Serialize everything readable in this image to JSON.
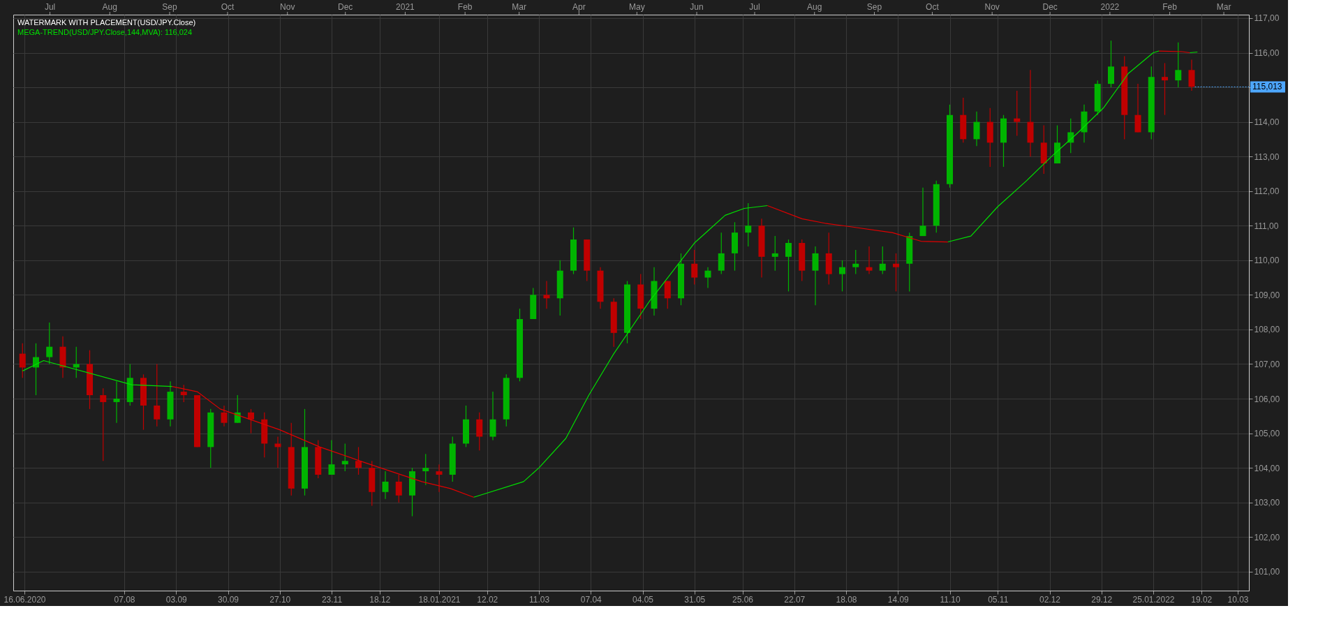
{
  "chart_data": {
    "type": "candlestick",
    "annotations": [
      "WATERMARK WITH PLACEMENT(USD/JPY.Close)",
      {
        "text": "115,013",
        "x": "2022-02-14",
        "y": 115.013
      }
    ],
    "x": [
      "2020-06-15",
      "2020-06-22",
      "2020-06-29",
      "2020-07-06",
      "2020-07-13",
      "2020-07-20",
      "2020-07-27",
      "2020-08-03",
      "2020-08-10",
      "2020-08-17",
      "2020-08-24",
      "2020-08-31",
      "2020-09-07",
      "2020-09-14",
      "2020-09-21",
      "2020-09-28",
      "2020-10-05",
      "2020-10-12",
      "2020-10-19",
      "2020-10-26",
      "2020-11-02",
      "2020-11-09",
      "2020-11-16",
      "2020-11-23",
      "2020-11-30",
      "2020-12-07",
      "2020-12-14",
      "2020-12-21",
      "2020-12-28",
      "2021-01-04",
      "2021-01-11",
      "2021-01-18",
      "2021-01-25",
      "2021-02-01",
      "2021-02-08",
      "2021-02-15",
      "2021-02-22",
      "2021-03-01",
      "2021-03-08",
      "2021-03-15",
      "2021-03-22",
      "2021-03-29",
      "2021-04-05",
      "2021-04-12",
      "2021-04-19",
      "2021-04-26",
      "2021-05-03",
      "2021-05-10",
      "2021-05-17",
      "2021-05-24",
      "2021-05-31",
      "2021-06-07",
      "2021-06-14",
      "2021-06-21",
      "2021-06-28",
      "2021-07-05",
      "2021-07-12",
      "2021-07-19",
      "2021-07-26",
      "2021-08-02",
      "2021-08-09",
      "2021-08-16",
      "2021-08-23",
      "2021-08-30",
      "2021-09-06",
      "2021-09-13",
      "2021-09-20",
      "2021-09-27",
      "2021-10-04",
      "2021-10-11",
      "2021-10-18",
      "2021-10-25",
      "2021-11-01",
      "2021-11-08",
      "2021-11-15",
      "2021-11-22",
      "2021-11-29",
      "2021-12-06",
      "2021-12-13",
      "2021-12-20",
      "2021-12-27",
      "2022-01-03",
      "2022-01-10",
      "2022-01-17",
      "2022-01-24",
      "2022-01-31",
      "2022-02-07",
      "2022-02-14"
    ],
    "ohlc": [
      [
        107.3,
        107.6,
        106.6,
        106.9
      ],
      [
        106.9,
        107.6,
        106.1,
        107.2
      ],
      [
        107.2,
        108.2,
        107.0,
        107.5
      ],
      [
        107.5,
        107.8,
        106.6,
        106.9
      ],
      [
        106.9,
        107.5,
        106.6,
        107.0
      ],
      [
        107.0,
        107.4,
        105.7,
        106.1
      ],
      [
        106.1,
        106.3,
        104.2,
        105.9
      ],
      [
        105.9,
        106.5,
        105.3,
        106.0
      ],
      [
        105.9,
        107.0,
        105.8,
        106.6
      ],
      [
        106.6,
        106.7,
        105.1,
        105.8
      ],
      [
        105.8,
        107.0,
        105.2,
        105.4
      ],
      [
        105.4,
        106.5,
        105.2,
        106.2
      ],
      [
        106.2,
        106.4,
        105.9,
        106.1
      ],
      [
        106.1,
        106.1,
        104.6,
        104.6
      ],
      [
        104.6,
        105.7,
        104.0,
        105.6
      ],
      [
        105.6,
        105.8,
        105.2,
        105.3
      ],
      [
        105.3,
        106.1,
        105.3,
        105.6
      ],
      [
        105.6,
        105.7,
        105.0,
        105.4
      ],
      [
        105.4,
        105.6,
        104.3,
        104.7
      ],
      [
        104.7,
        104.9,
        104.0,
        104.6
      ],
      [
        104.6,
        105.3,
        103.2,
        103.4
      ],
      [
        103.4,
        105.7,
        103.2,
        104.6
      ],
      [
        104.6,
        104.8,
        103.7,
        103.8
      ],
      [
        103.8,
        104.8,
        103.8,
        104.1
      ],
      [
        104.1,
        104.7,
        103.9,
        104.2
      ],
      [
        104.2,
        104.6,
        103.8,
        104.0
      ],
      [
        104.0,
        104.2,
        102.9,
        103.3
      ],
      [
        103.3,
        103.9,
        103.1,
        103.6
      ],
      [
        103.6,
        103.8,
        103.0,
        103.2
      ],
      [
        103.2,
        104.0,
        102.6,
        103.9
      ],
      [
        103.9,
        104.4,
        103.5,
        104.0
      ],
      [
        103.9,
        104.1,
        103.3,
        103.8
      ],
      [
        103.8,
        104.9,
        103.6,
        104.7
      ],
      [
        104.7,
        105.8,
        104.6,
        105.4
      ],
      [
        105.4,
        105.6,
        104.5,
        104.9
      ],
      [
        104.9,
        106.2,
        104.8,
        105.4
      ],
      [
        105.4,
        106.7,
        105.2,
        106.6
      ],
      [
        106.6,
        108.6,
        106.5,
        108.3
      ],
      [
        108.3,
        109.2,
        108.3,
        109.0
      ],
      [
        109.0,
        109.4,
        108.6,
        108.9
      ],
      [
        108.9,
        110.0,
        108.4,
        109.7
      ],
      [
        109.7,
        110.95,
        109.6,
        110.6
      ],
      [
        110.6,
        110.6,
        109.4,
        109.7
      ],
      [
        109.7,
        109.8,
        108.6,
        108.8
      ],
      [
        108.8,
        108.9,
        107.5,
        107.9
      ],
      [
        107.9,
        109.4,
        107.6,
        109.3
      ],
      [
        109.3,
        109.6,
        108.3,
        108.6
      ],
      [
        108.6,
        109.8,
        108.4,
        109.4
      ],
      [
        109.4,
        109.4,
        108.6,
        108.9
      ],
      [
        108.9,
        110.2,
        108.7,
        109.9
      ],
      [
        109.9,
        110.3,
        109.3,
        109.5
      ],
      [
        109.5,
        109.8,
        109.2,
        109.7
      ],
      [
        109.7,
        110.8,
        109.6,
        110.2
      ],
      [
        110.2,
        111.1,
        109.7,
        110.8
      ],
      [
        110.8,
        111.65,
        110.4,
        111.0
      ],
      [
        111.0,
        111.2,
        109.5,
        110.1
      ],
      [
        110.1,
        110.7,
        109.7,
        110.2
      ],
      [
        110.1,
        110.6,
        109.1,
        110.5
      ],
      [
        110.5,
        110.6,
        109.4,
        109.7
      ],
      [
        109.7,
        110.4,
        108.7,
        110.2
      ],
      [
        110.2,
        110.8,
        109.3,
        109.6
      ],
      [
        109.6,
        110.0,
        109.1,
        109.8
      ],
      [
        109.8,
        110.3,
        109.6,
        109.9
      ],
      [
        109.8,
        110.4,
        109.6,
        109.7
      ],
      [
        109.7,
        110.4,
        109.6,
        109.9
      ],
      [
        109.9,
        110.2,
        109.1,
        109.8
      ],
      [
        109.9,
        110.8,
        109.1,
        110.7
      ],
      [
        110.7,
        112.1,
        110.7,
        111.0
      ],
      [
        111.0,
        112.3,
        110.8,
        112.2
      ],
      [
        112.2,
        114.5,
        112.1,
        114.2
      ],
      [
        114.2,
        114.7,
        113.4,
        113.5
      ],
      [
        113.5,
        114.3,
        113.3,
        114.0
      ],
      [
        114.0,
        114.4,
        112.7,
        113.4
      ],
      [
        113.4,
        114.2,
        112.7,
        114.1
      ],
      [
        114.1,
        114.9,
        113.6,
        114.0
      ],
      [
        114.0,
        115.5,
        113.0,
        113.4
      ],
      [
        113.4,
        113.9,
        112.5,
        112.8
      ],
      [
        112.8,
        113.9,
        112.8,
        113.4
      ],
      [
        113.4,
        114.1,
        113.1,
        113.7
      ],
      [
        113.7,
        114.5,
        113.4,
        114.3
      ],
      [
        114.3,
        115.2,
        114.2,
        115.1
      ],
      [
        115.1,
        116.35,
        115.0,
        115.6
      ],
      [
        115.6,
        115.9,
        113.5,
        114.2
      ],
      [
        114.2,
        115.1,
        113.7,
        113.7
      ],
      [
        113.7,
        115.6,
        113.5,
        115.3
      ],
      [
        115.3,
        115.7,
        114.2,
        115.2
      ],
      [
        115.2,
        116.3,
        115.0,
        115.5
      ],
      [
        115.5,
        115.8,
        114.9,
        115.013
      ]
    ],
    "colors": [
      "#c00000",
      "#00b400",
      "#00b400",
      "#c00000",
      "#00b400",
      "#c00000",
      "#c00000",
      "#00b400",
      "#00b400",
      "#c00000",
      "#c00000",
      "#00b400",
      "#c00000",
      "#c00000",
      "#00b400",
      "#c00000",
      "#00b400",
      "#c00000",
      "#c00000",
      "#c00000",
      "#c00000",
      "#00b400",
      "#c00000",
      "#00b400",
      "#00b400",
      "#c00000",
      "#c00000",
      "#00b400",
      "#c00000",
      "#00b400",
      "#00b400",
      "#c00000",
      "#00b400",
      "#00b400",
      "#c00000",
      "#00b400",
      "#00b400",
      "#00b400",
      "#00b400",
      "#c00000",
      "#00b400",
      "#00b400",
      "#c00000",
      "#c00000",
      "#c00000",
      "#00b400",
      "#c00000",
      "#00b400",
      "#c00000",
      "#00b400",
      "#c00000",
      "#00b400",
      "#00b400",
      "#00b400",
      "#00b400",
      "#c00000",
      "#00b400",
      "#00b400",
      "#c00000",
      "#00b400",
      "#c00000",
      "#00b400",
      "#00b400",
      "#c00000",
      "#00b400",
      "#c00000",
      "#00b400",
      "#00b400",
      "#00b400",
      "#00b400",
      "#c00000",
      "#00b400",
      "#c00000",
      "#00b400",
      "#c00000",
      "#c00000",
      "#c00000",
      "#00b400",
      "#00b400",
      "#00b400",
      "#00b400",
      "#00b400",
      "#c00000",
      "#c00000",
      "#00b400",
      "#c00000",
      "#00b400",
      "#c00000"
    ],
    "series": [
      {
        "type": "line",
        "name": "MEGA-TREND(USD/JPY.Close,144,MVA): 116,024",
        "color": "#00e000",
        "x": [
          "2020-06-15",
          "2020-06-26",
          "2020-08-11",
          "2020-09-01",
          "2020-09-14",
          "2020-09-26",
          "2020-10-27",
          "2020-11-17",
          "2020-12-13",
          "2021-01-09",
          "2021-01-24",
          "2021-02-05",
          "2021-03-03",
          "2021-03-11",
          "2021-03-25",
          "2021-04-06",
          "2021-04-19",
          "2021-05-08",
          "2021-05-13",
          "2021-05-31",
          "2021-06-16",
          "2021-06-26",
          "2021-07-08",
          "2021-07-26",
          "2021-08-07",
          "2021-08-19",
          "2021-09-11",
          "2021-09-26",
          "2021-10-10",
          "2021-10-22",
          "2021-11-05",
          "2021-11-20",
          "2021-12-03",
          "2021-12-16",
          "2021-12-30",
          "2022-01-12",
          "2022-01-25",
          "2022-01-28",
          "2022-02-09",
          "2022-02-13",
          "2022-02-17"
        ],
        "values": [
          106.8,
          107.1,
          106.4,
          106.35,
          null,
          null,
          null,
          null,
          null,
          null,
          null,
          103.15,
          103.6,
          104.0,
          104.85,
          106.1,
          107.3,
          108.85,
          109.2,
          110.5,
          111.3,
          111.5,
          111.58,
          null,
          null,
          null,
          null,
          null,
          110.53,
          110.7,
          111.55,
          112.3,
          113.0,
          113.65,
          114.4,
          115.4,
          116.0,
          116.05,
          null,
          116.0,
          116.02
        ]
      },
      {
        "type": "line",
        "color": "#e00000",
        "x": [
          "2020-09-01",
          "2020-09-14",
          "2020-09-26",
          "2020-10-27",
          "2020-11-17",
          "2020-12-13",
          "2021-01-09",
          "2021-01-24",
          "2021-02-05",
          "2021-03-03",
          "2021-03-11",
          "2021-03-25",
          "2021-04-06",
          "2021-04-19",
          "2021-05-08",
          "2021-05-13",
          "2021-05-31",
          "2021-06-16",
          "2021-06-26",
          "2021-07-08",
          "2021-07-26",
          "2021-08-07",
          "2021-08-19",
          "2021-09-11",
          "2021-09-26",
          "2021-10-10",
          "2021-10-22",
          "2021-11-05",
          "2021-11-20",
          "2021-12-03",
          "2021-12-16",
          "2021-12-30",
          "2022-01-12",
          "2022-01-25",
          "2022-01-28",
          "2022-02-09",
          "2022-02-13"
        ],
        "values": [
          106.35,
          106.2,
          105.7,
          105.1,
          104.6,
          104.1,
          103.6,
          103.4,
          103.15,
          null,
          null,
          null,
          null,
          null,
          null,
          null,
          null,
          null,
          null,
          111.58,
          111.2,
          111.07,
          110.98,
          110.8,
          110.55,
          110.53,
          null,
          null,
          null,
          null,
          null,
          null,
          null,
          null,
          116.05,
          116.03,
          116.0
        ]
      }
    ],
    "x2lim": [
      "2020-06-12",
      "2022-03-14"
    ],
    "xlim": [
      "2020-06-12",
      "2022-03-14"
    ],
    "xticks": [
      {
        "value": "2020-06-16",
        "label": "16.06.2020"
      },
      {
        "value": "2020-08-07",
        "label": "07.08"
      },
      {
        "value": "2020-09-03",
        "label": "03.09"
      },
      {
        "value": "2020-09-30",
        "label": "30.09"
      },
      {
        "value": "2020-10-27",
        "label": "27.10"
      },
      {
        "value": "2020-11-23",
        "label": "23.11"
      },
      {
        "value": "2020-12-18",
        "label": "18.12"
      },
      {
        "value": "2021-01-18",
        "label": "18.01.2021"
      },
      {
        "value": "2021-02-12",
        "label": "12.02"
      },
      {
        "value": "2021-03-11",
        "label": "11.03"
      },
      {
        "value": "2021-04-07",
        "label": "07.04"
      },
      {
        "value": "2021-05-04",
        "label": "04.05"
      },
      {
        "value": "2021-05-31",
        "label": "31.05"
      },
      {
        "value": "2021-06-25",
        "label": "25.06"
      },
      {
        "value": "2021-07-22",
        "label": "22.07"
      },
      {
        "value": "2021-08-18",
        "label": "18.08"
      },
      {
        "value": "2021-09-14",
        "label": "14.09"
      },
      {
        "value": "2021-10-11",
        "label": "11.10"
      },
      {
        "value": "2021-11-05",
        "label": "05.11"
      },
      {
        "value": "2021-12-02",
        "label": "02.12"
      },
      {
        "value": "2021-12-29",
        "label": "29.12"
      },
      {
        "value": "2022-01-25",
        "label": "25.01.2022"
      },
      {
        "value": "2022-02-19",
        "label": "19.02"
      },
      {
        "value": "2022-03-10",
        "label": "10.03"
      }
    ],
    "x2ticks": [
      {
        "value": "2020-07-01",
        "label": "Jul"
      },
      {
        "value": "2020-08-01",
        "label": "Aug"
      },
      {
        "value": "2020-09-01",
        "label": "Sep"
      },
      {
        "value": "2020-10-01",
        "label": "Oct"
      },
      {
        "value": "2020-11-01",
        "label": "Nov"
      },
      {
        "value": "2020-12-01",
        "label": "Dec"
      },
      {
        "value": "2021-01-01",
        "label": "2021"
      },
      {
        "value": "2021-02-01",
        "label": "Feb"
      },
      {
        "value": "2021-03-01",
        "label": "Mar"
      },
      {
        "value": "2021-04-01",
        "label": "Apr"
      },
      {
        "value": "2021-05-01",
        "label": "May"
      },
      {
        "value": "2021-06-01",
        "label": "Jun"
      },
      {
        "value": "2021-07-01",
        "label": "Jul"
      },
      {
        "value": "2021-08-01",
        "label": "Aug"
      },
      {
        "value": "2021-09-01",
        "label": "Sep"
      },
      {
        "value": "2021-10-01",
        "label": "Oct"
      },
      {
        "value": "2021-11-01",
        "label": "Nov"
      },
      {
        "value": "2021-12-01",
        "label": "Dec"
      },
      {
        "value": "2022-01-01",
        "label": "2022"
      },
      {
        "value": "2022-02-01",
        "label": "Feb"
      },
      {
        "value": "2022-03-01",
        "label": "Mar"
      }
    ],
    "ylim": [
      100.45,
      117.1
    ],
    "yticks": [
      {
        "value": 101,
        "label": "101,00"
      },
      {
        "value": 102,
        "label": "102,00"
      },
      {
        "value": 103,
        "label": "103,00"
      },
      {
        "value": 104,
        "label": "104,00"
      },
      {
        "value": 105,
        "label": "105,00"
      },
      {
        "value": 106,
        "label": "106,00"
      },
      {
        "value": 107,
        "label": "107,00"
      },
      {
        "value": 108,
        "label": "108,00"
      },
      {
        "value": 109,
        "label": "109,00"
      },
      {
        "value": 110,
        "label": "110,00"
      },
      {
        "value": 111,
        "label": "111,00"
      },
      {
        "value": 112,
        "label": "112,00"
      },
      {
        "value": 113,
        "label": "113,00"
      },
      {
        "value": 114,
        "label": "114,00"
      },
      {
        "value": 115,
        "label": null
      },
      {
        "value": 116,
        "label": "116,00"
      },
      {
        "value": 117,
        "label": "117,00"
      }
    ],
    "grid": true,
    "legend": "top left"
  }
}
